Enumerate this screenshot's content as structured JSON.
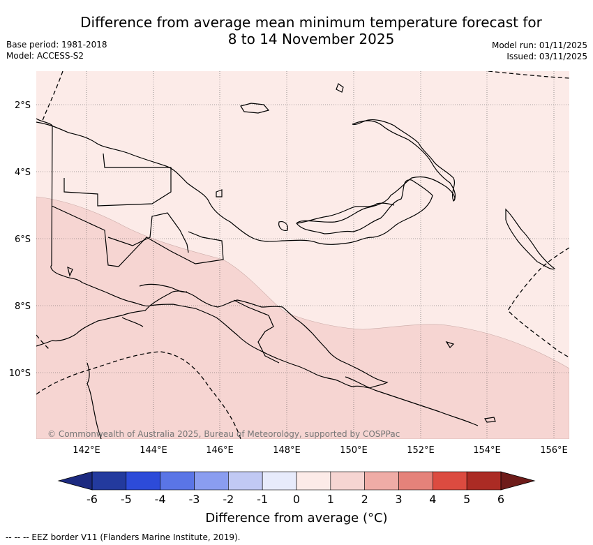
{
  "title": {
    "line1": "Difference from average mean minimum temperature forecast for",
    "line2": "8 to 14 November 2025"
  },
  "meta": {
    "base_period": "Base period: 1981-2018",
    "model": "Model: ACCESS-S2",
    "model_run": "Model run: 01/11/2025",
    "issued": "Issued: 03/11/2025"
  },
  "map": {
    "lat_labels": [
      "2°S",
      "4°S",
      "6°S",
      "8°S",
      "10°S"
    ],
    "lon_labels": [
      "142°E",
      "144°E",
      "146°E",
      "148°E",
      "150°E",
      "152°E",
      "154°E",
      "156°E"
    ],
    "copyright": "© Commonwealth of Australia 2025, Bureau of Meteorology, supported by COSPPac",
    "anomaly_zones": [
      {
        "name": "north",
        "range": "0 to 1 °C",
        "color": "#fcebe8"
      },
      {
        "name": "south",
        "range": "1 to 2 °C",
        "color": "#f6d5d2"
      }
    ]
  },
  "colorbar": {
    "title": "Difference from average (°C)",
    "ticks": [
      "-6",
      "-5",
      "-4",
      "-3",
      "-2",
      "-1",
      "0",
      "1",
      "2",
      "3",
      "4",
      "5",
      "6"
    ],
    "colors": [
      "#233a9e",
      "#2d4bd9",
      "#5a75e6",
      "#8a9df0",
      "#c1c9f4",
      "#e7ebfb",
      "#fcebe8",
      "#f6d5d2",
      "#efaca6",
      "#e5827a",
      "#dc4b40",
      "#ab2b24"
    ],
    "under_color": "#1c2a80",
    "over_color": "#6e1c1a"
  },
  "footer": {
    "eez_note": "--  --  -- EEZ border V11 (Flanders Marine Institute, 2019)."
  }
}
